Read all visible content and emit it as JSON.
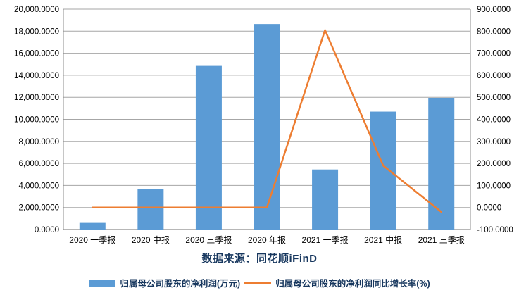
{
  "source_line": "数据来源：同花顺iFinD",
  "colors": {
    "bar": "#5B9BD5",
    "line": "#ED7D31",
    "grid": "#A6A6A6",
    "axis_border": "#8C8C8C",
    "tick_text": "#000000",
    "title_text": "#17375E"
  },
  "chart_data": {
    "type": "bar",
    "title": "数据来源：同花顺iFinD",
    "grid": true,
    "legend_position": "bottom",
    "categories": [
      "2020 一季报",
      "2020 中报",
      "2020 三季报",
      "2020 年报",
      "2021 一季报",
      "2021 中报",
      "2021 三季报"
    ],
    "series": [
      {
        "name": "归属母公司股东的净利润(万元)",
        "type": "bar",
        "axis": "left",
        "values": [
          600,
          3700,
          14850,
          18650,
          5450,
          10700,
          11950
        ]
      },
      {
        "name": "归属母公司股东的净利润同比增长率(%)",
        "type": "line",
        "axis": "right",
        "values": [
          0,
          0,
          0,
          0,
          805,
          190,
          -20
        ]
      }
    ],
    "left_axis": {
      "min": 0,
      "max": 20000,
      "tick_values": [
        0,
        2000,
        4000,
        6000,
        8000,
        10000,
        12000,
        14000,
        16000,
        18000,
        20000
      ],
      "tick_labels": [
        "0.0000",
        "2,000.0000",
        "4,000.0000",
        "6,000.0000",
        "8,000.0000",
        "10,000.0000",
        "12,000.0000",
        "14,000.0000",
        "16,000.0000",
        "18,000.0000",
        "20,000.0000"
      ]
    },
    "right_axis": {
      "min": -100,
      "max": 900,
      "tick_values": [
        -100,
        0,
        100,
        200,
        300,
        400,
        500,
        600,
        700,
        800,
        900
      ],
      "tick_labels": [
        "-100.0000",
        "0.0000",
        "100.0000",
        "200.0000",
        "300.0000",
        "400.0000",
        "500.0000",
        "600.0000",
        "700.0000",
        "800.0000",
        "900.0000"
      ]
    }
  }
}
